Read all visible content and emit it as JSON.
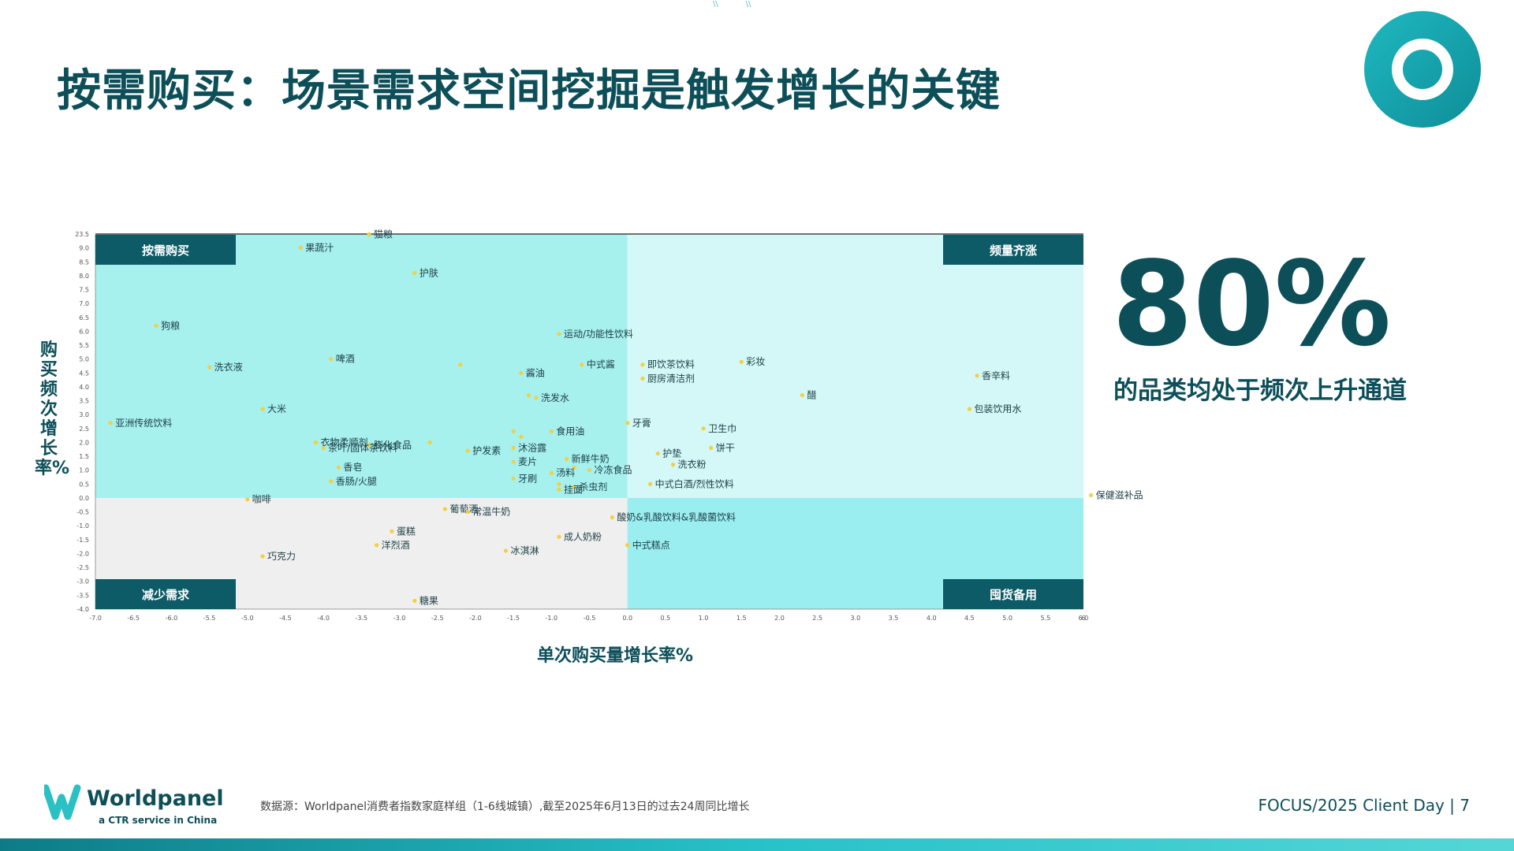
{
  "title": "按需购买：场景需求空间挖掘是触发增长的关键",
  "highlight": {
    "value": "80%",
    "caption": "的品类均处于频次上升通道"
  },
  "footer": {
    "brand": "Worldpanel",
    "tagline": "a CTR service in China",
    "source": "数据源：Worldpanel消费者指数家庭样组（1-6线城镇）,截至2025年6月13日的过去24周同比增长",
    "page": "FOCUS/2025 Client Day | 7"
  },
  "chart_data": {
    "type": "scatter",
    "xlabel": "单次购买量增长率%",
    "ylabel": "购买频次增长率%",
    "xlim": [
      -7.0,
      6.0
    ],
    "ylim": [
      -4.0,
      23.5
    ],
    "x_ticks": [
      "-7.0",
      "-6.5",
      "-6.0",
      "-5.5",
      "-5.0",
      "-4.5",
      "-4.0",
      "-3.5",
      "-3.0",
      "-2.5",
      "-2.0",
      "-1.5",
      "-1.0",
      "-0.5",
      "0.0",
      "0.5",
      "1.0",
      "1.5",
      "2.0",
      "2.5",
      "3.0",
      "3.5",
      "4.0",
      "4.5",
      "5.0",
      "5.5",
      "6.0",
      "6"
    ],
    "y_ticks": [
      "23.5",
      "9.0",
      "8.5",
      "8.0",
      "7.5",
      "7.0",
      "6.5",
      "6.0",
      "5.5",
      "5.0",
      "4.5",
      "4.0",
      "3.5",
      "3.0",
      "2.5",
      "2.0",
      "1.5",
      "1.0",
      "0.5",
      "0.0",
      "-0.5",
      "-1.0",
      "-1.5",
      "-2.0",
      "-2.5",
      "-3.0",
      "-3.5",
      "-4.0"
    ],
    "quadrants": {
      "top_left": "按需购买",
      "top_right": "频量齐涨",
      "bottom_left": "减少需求",
      "bottom_right": "囤货备用"
    },
    "quadrant_colors": {
      "top_left": "#a6f0ee",
      "top_right": "#d3f8f7",
      "bottom_left": "#efefef",
      "bottom_right": "#9aeef0",
      "label_bg": "#0d5b66",
      "point": "#f5cf3e"
    },
    "points": [
      {
        "label": "猫粮",
        "x": -3.4,
        "y": 23.2
      },
      {
        "label": "果蔬汁",
        "x": -4.3,
        "y": 9.3
      },
      {
        "label": "护肤",
        "x": -2.8,
        "y": 8.1
      },
      {
        "label": "狗粮",
        "x": -6.2,
        "y": 6.2
      },
      {
        "label": "运动/功能性饮料",
        "x": -0.9,
        "y": 5.9
      },
      {
        "label": "啤酒",
        "x": -3.9,
        "y": 5.0
      },
      {
        "label": "洗衣液",
        "x": -5.5,
        "y": 4.7
      },
      {
        "label": "",
        "x": -2.2,
        "y": 4.8
      },
      {
        "label": "中式酱",
        "x": -0.6,
        "y": 4.8
      },
      {
        "label": "即饮茶饮料",
        "x": 0.2,
        "y": 4.8
      },
      {
        "label": "彩妆",
        "x": 1.5,
        "y": 4.9
      },
      {
        "label": "酱油",
        "x": -1.4,
        "y": 4.5
      },
      {
        "label": "厨房清洁剂",
        "x": 0.2,
        "y": 4.3
      },
      {
        "label": "香辛料",
        "x": 4.6,
        "y": 4.4
      },
      {
        "label": "洗发水",
        "x": -1.2,
        "y": 3.6
      },
      {
        "label": "",
        "x": -1.3,
        "y": 3.7
      },
      {
        "label": "醋",
        "x": 2.3,
        "y": 3.7
      },
      {
        "label": "大米",
        "x": -4.8,
        "y": 3.2
      },
      {
        "label": "包装饮用水",
        "x": 4.5,
        "y": 3.2
      },
      {
        "label": "亚洲传统饮料",
        "x": -6.8,
        "y": 2.7
      },
      {
        "label": "牙膏",
        "x": 0.0,
        "y": 2.7
      },
      {
        "label": "卫生巾",
        "x": 1.0,
        "y": 2.5
      },
      {
        "label": "食用油",
        "x": -1.0,
        "y": 2.4
      },
      {
        "label": "",
        "x": -1.5,
        "y": 2.4
      },
      {
        "label": "",
        "x": -1.4,
        "y": 2.2
      },
      {
        "label": "衣物柔顺剂",
        "x": -4.1,
        "y": 2.0
      },
      {
        "label": "膨化食品",
        "x": -3.4,
        "y": 1.9
      },
      {
        "label": "",
        "x": -2.6,
        "y": 2.0
      },
      {
        "label": "沐浴露",
        "x": -1.5,
        "y": 1.8
      },
      {
        "label": "饼干",
        "x": 1.1,
        "y": 1.8
      },
      {
        "label": "护垫",
        "x": 0.4,
        "y": 1.6
      },
      {
        "label": "护发素",
        "x": -2.1,
        "y": 1.7
      },
      {
        "label": "新鲜牛奶",
        "x": -0.8,
        "y": 1.4
      },
      {
        "label": "麦片",
        "x": -1.5,
        "y": 1.3
      },
      {
        "label": "洗衣粉",
        "x": 0.6,
        "y": 1.2
      },
      {
        "label": "香皂",
        "x": -3.8,
        "y": 1.1
      },
      {
        "label": "冷冻食品",
        "x": -0.5,
        "y": 1.0
      },
      {
        "label": "",
        "x": -0.7,
        "y": 1.1
      },
      {
        "label": "汤料",
        "x": -1.0,
        "y": 0.9
      },
      {
        "label": "香肠/火腿",
        "x": -3.9,
        "y": 0.6
      },
      {
        "label": "牙刷",
        "x": -1.5,
        "y": 0.7
      },
      {
        "label": "中式白酒/烈性饮料",
        "x": 0.3,
        "y": 0.5
      },
      {
        "label": "杀虫剂",
        "x": -0.7,
        "y": 0.4
      },
      {
        "label": "",
        "x": -0.9,
        "y": 0.5
      },
      {
        "label": "挂面",
        "x": -0.9,
        "y": 0.3
      },
      {
        "label": "保健滋补品",
        "x": 6.1,
        "y": 0.1
      },
      {
        "label": "咖啡",
        "x": -5.0,
        "y": -0.05
      },
      {
        "label": "葡萄酒",
        "x": -2.4,
        "y": -0.4
      },
      {
        "label": "常温牛奶",
        "x": -2.1,
        "y": -0.5
      },
      {
        "label": "酸奶&乳酸饮料&乳酸菌饮料",
        "x": -0.2,
        "y": -0.7
      },
      {
        "label": "蛋糕",
        "x": -3.1,
        "y": -1.2
      },
      {
        "label": "成人奶粉",
        "x": -0.9,
        "y": -1.4
      },
      {
        "label": "洋烈酒",
        "x": -3.3,
        "y": -1.7
      },
      {
        "label": "中式糕点",
        "x": 0.0,
        "y": -1.7
      },
      {
        "label": "冰淇淋",
        "x": -1.6,
        "y": -1.9
      },
      {
        "label": "巧克力",
        "x": -4.8,
        "y": -2.1
      },
      {
        "label": "糖果",
        "x": -2.8,
        "y": -3.7
      },
      {
        "label": "茶叶/固体茶饮料",
        "x": -4.0,
        "y": 1.8
      }
    ]
  }
}
